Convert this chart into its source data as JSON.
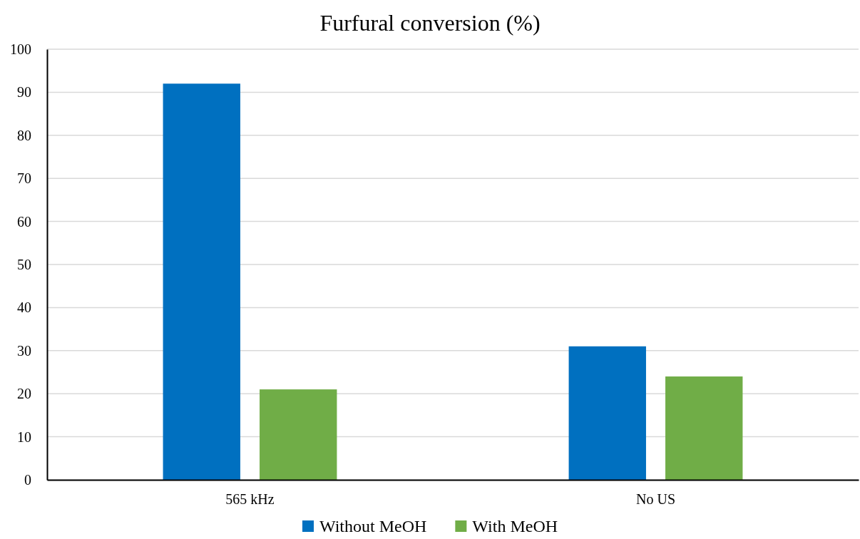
{
  "chart_data": {
    "type": "bar",
    "title": "Furfural conversion (%)",
    "categories": [
      "565 kHz",
      "No US"
    ],
    "series": [
      {
        "name": "Without MeOH",
        "color": "#0070c0",
        "values": [
          92,
          31
        ]
      },
      {
        "name": "With MeOH",
        "color": "#70ad47",
        "values": [
          21,
          24
        ]
      }
    ],
    "ylim": [
      0,
      100
    ],
    "yticks": [
      0,
      10,
      20,
      30,
      40,
      50,
      60,
      70,
      80,
      90,
      100
    ],
    "grid": "y",
    "legend": "bottom"
  }
}
